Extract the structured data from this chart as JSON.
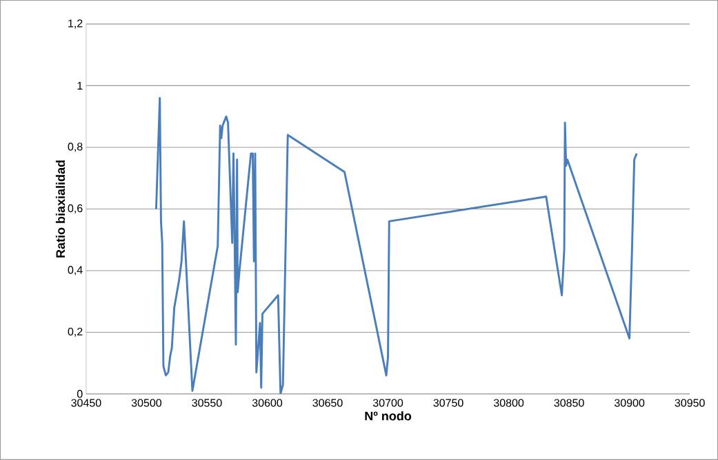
{
  "chart_data": {
    "type": "line",
    "xlabel": "Nº nodo",
    "ylabel": "Ratio biaxialidad",
    "x": [
      30508,
      30511,
      30512,
      30513,
      30514,
      30516,
      30518,
      30519.5,
      30521,
      30523,
      30527,
      30529,
      30531,
      30538,
      30559,
      30561,
      30562,
      30563,
      30566,
      30567.5,
      30571,
      30572,
      30573,
      30574,
      30575,
      30575.5,
      30577,
      30586.5,
      30588,
      30589,
      30590,
      30591,
      30594,
      30595,
      30596,
      30609,
      30611,
      30613,
      30617,
      30664,
      30698.6,
      30700,
      30701,
      30831,
      30844,
      30846,
      30846.6,
      30847.5,
      30848.6,
      30900,
      30902,
      30904,
      30906
    ],
    "series": [
      {
        "color": "#4a7ebb",
        "values": [
          0.6,
          0.96,
          0.56,
          0.49,
          0.09,
          0.06,
          0.07,
          0.12,
          0.15,
          0.28,
          0.37,
          0.43,
          0.56,
          0.01,
          0.48,
          0.87,
          0.83,
          0.87,
          0.9,
          0.88,
          0.49,
          0.78,
          0.5,
          0.16,
          0.76,
          0.33,
          0.4,
          0.78,
          0.78,
          0.43,
          0.78,
          0.07,
          0.23,
          0.02,
          0.26,
          0.32,
          0.0,
          0.03,
          0.84,
          0.72,
          0.06,
          0.12,
          0.56,
          0.64,
          0.32,
          0.47,
          0.88,
          0.74,
          0.76,
          0.18,
          0.45,
          0.76,
          0.78
        ]
      }
    ],
    "xlim": [
      30450,
      30950
    ],
    "xticks": [
      30450,
      30500,
      30550,
      30600,
      30650,
      30700,
      30750,
      30800,
      30850,
      30900,
      30950
    ],
    "ylim": [
      0,
      1.2
    ],
    "yticks": [
      0,
      {
        "value": 0.2,
        "label": "0,2"
      },
      {
        "value": 0.4,
        "label": "0,4"
      },
      {
        "value": 0.6,
        "label": "0,6"
      },
      {
        "value": 0.8,
        "label": "0,8"
      },
      1,
      {
        "value": 1.2,
        "label": "1,2"
      }
    ],
    "grid": "y"
  }
}
